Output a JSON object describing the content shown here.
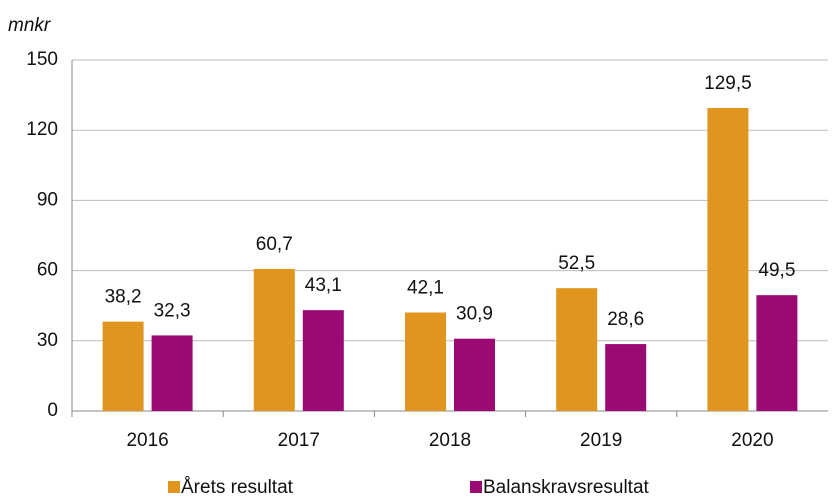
{
  "chart_data": {
    "type": "bar",
    "y_label": "mnkr",
    "categories": [
      "2016",
      "2017",
      "2018",
      "2019",
      "2020"
    ],
    "series": [
      {
        "name": "Årets resultat",
        "color": "#e0961e",
        "values": [
          38.2,
          60.7,
          42.1,
          52.5,
          129.5
        ],
        "value_labels": [
          "38,2",
          "60,7",
          "42,1",
          "52,5",
          "129,5"
        ]
      },
      {
        "name": "Balanskravsresultat",
        "color": "#9b0a72",
        "values": [
          32.3,
          43.1,
          30.9,
          28.6,
          49.5
        ],
        "value_labels": [
          "32,3",
          "43,1",
          "30,9",
          "28,6",
          "49,5"
        ]
      }
    ],
    "ylim": [
      0,
      150
    ],
    "yticks": [
      0,
      30,
      60,
      90,
      120,
      150
    ],
    "grid": true
  }
}
